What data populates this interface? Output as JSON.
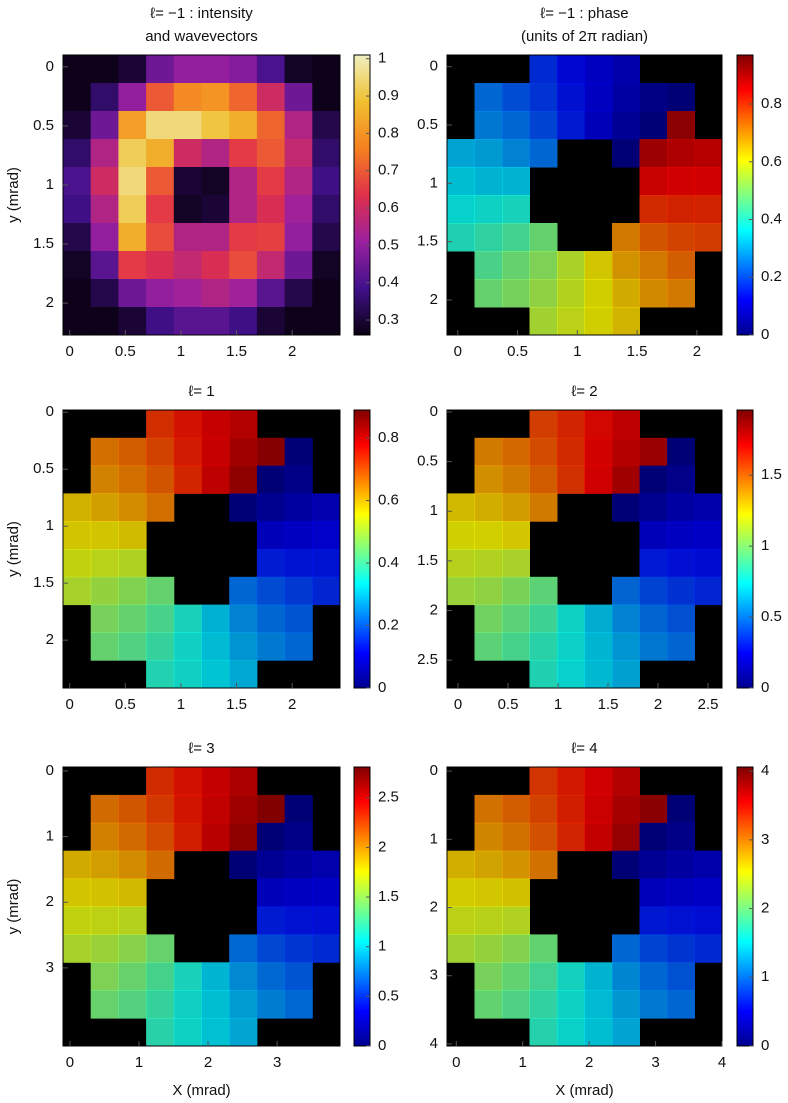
{
  "chart_data": [
    {
      "type": "heatmap",
      "title": [
        "ℓ= −1 : intensity",
        "and wavevectors"
      ],
      "ylabel": "y (mrad)",
      "xlim": [
        -0.06,
        2.43
      ],
      "ylim": [
        -0.1,
        2.27
      ],
      "xticks": [
        0,
        0.5,
        1,
        1.5,
        2
      ],
      "yticks": [
        0,
        0.5,
        1,
        1.5,
        2
      ],
      "clim": [
        0.26,
        1.01
      ],
      "cticks": [
        0.3,
        0.4,
        0.5,
        0.6,
        0.7,
        0.8,
        0.9,
        1
      ],
      "colormap": [
        "#0a0010",
        "#40108a",
        "#9a20a0",
        "#e0304a",
        "#f58020",
        "#f0c030",
        "#f0f0c0"
      ],
      "z": [
        [
          0.27,
          0.27,
          0.3,
          0.45,
          0.5,
          0.5,
          0.48,
          0.4,
          0.28,
          0.27
        ],
        [
          0.27,
          0.35,
          0.5,
          0.7,
          0.78,
          0.8,
          0.72,
          0.6,
          0.45,
          0.27
        ],
        [
          0.3,
          0.45,
          0.82,
          0.95,
          0.95,
          0.9,
          0.85,
          0.72,
          0.55,
          0.32
        ],
        [
          0.35,
          0.55,
          0.92,
          0.85,
          0.6,
          0.55,
          0.65,
          0.7,
          0.58,
          0.35
        ],
        [
          0.4,
          0.6,
          0.95,
          0.7,
          0.3,
          0.28,
          0.55,
          0.65,
          0.55,
          0.38
        ],
        [
          0.38,
          0.55,
          0.92,
          0.65,
          0.28,
          0.3,
          0.55,
          0.62,
          0.52,
          0.35
        ],
        [
          0.32,
          0.5,
          0.85,
          0.68,
          0.55,
          0.55,
          0.65,
          0.66,
          0.5,
          0.32
        ],
        [
          0.28,
          0.42,
          0.65,
          0.62,
          0.58,
          0.62,
          0.68,
          0.58,
          0.45,
          0.28
        ],
        [
          0.27,
          0.32,
          0.45,
          0.5,
          0.52,
          0.55,
          0.52,
          0.42,
          0.32,
          0.27
        ],
        [
          0.27,
          0.27,
          0.3,
          0.38,
          0.42,
          0.42,
          0.38,
          0.3,
          0.27,
          0.27
        ]
      ]
    },
    {
      "type": "heatmap",
      "title": [
        "ℓ= −1 : phase",
        "(units of 2π radian)"
      ],
      "xlim": [
        -0.09,
        2.21
      ],
      "ylim": [
        -0.1,
        2.3
      ],
      "xticks": [
        0,
        0.5,
        1,
        1.5,
        2
      ],
      "yticks": [
        0,
        0.5,
        1,
        1.5,
        2
      ],
      "clim": [
        0,
        0.97
      ],
      "cticks": [
        0,
        0.2,
        0.4,
        0.6,
        0.8
      ],
      "colormap": [
        "#00008f",
        "#0000ff",
        "#0080ff",
        "#00ffff",
        "#80ff80",
        "#ffff00",
        "#ff8000",
        "#ff0000",
        "#800000"
      ],
      "z": [
        [
          null,
          null,
          null,
          0.17,
          0.13,
          0.1,
          0.07,
          null,
          null,
          null
        ],
        [
          null,
          0.24,
          0.21,
          0.18,
          0.14,
          0.1,
          0.06,
          0.02,
          0,
          null
        ],
        [
          null,
          0.26,
          0.24,
          0.2,
          0.15,
          0.09,
          0.04,
          0,
          0.93,
          null
        ],
        [
          0.31,
          0.3,
          0.27,
          0.24,
          null,
          null,
          0,
          0.91,
          0.89,
          0.88
        ],
        [
          0.34,
          0.33,
          0.33,
          null,
          null,
          null,
          null,
          0.86,
          0.85,
          0.85
        ],
        [
          0.37,
          0.38,
          0.39,
          null,
          null,
          null,
          null,
          0.8,
          0.81,
          0.81
        ],
        [
          0.4,
          0.42,
          0.44,
          0.48,
          null,
          null,
          0.71,
          0.75,
          0.77,
          0.78
        ],
        [
          null,
          0.45,
          0.48,
          0.51,
          0.56,
          0.62,
          0.68,
          0.71,
          0.74,
          null
        ],
        [
          null,
          0.48,
          0.5,
          0.53,
          0.57,
          0.61,
          0.65,
          0.69,
          0.71,
          null
        ],
        [
          null,
          null,
          null,
          0.55,
          0.58,
          0.61,
          0.64,
          null,
          null,
          null
        ]
      ]
    },
    {
      "type": "heatmap",
      "title": [
        "ℓ= 1"
      ],
      "ylabel": "y (mrad)",
      "xlim": [
        -0.06,
        2.43
      ],
      "ylim": [
        -0.02,
        2.42
      ],
      "xticks": [
        0,
        0.5,
        1,
        1.5,
        2
      ],
      "yticks": [
        0,
        0.5,
        1,
        1.5,
        2
      ],
      "clim": [
        0,
        0.89
      ],
      "cticks": [
        0,
        0.2,
        0.4,
        0.6,
        0.8
      ],
      "colormap": [
        "#00008f",
        "#0000ff",
        "#0080ff",
        "#00ffff",
        "#80ff80",
        "#ffff00",
        "#ff8000",
        "#ff0000",
        "#800000"
      ],
      "z": [
        [
          null,
          null,
          null,
          0.73,
          0.76,
          0.79,
          0.81,
          null,
          null,
          null
        ],
        [
          null,
          0.66,
          0.68,
          0.71,
          0.75,
          0.79,
          0.83,
          0.86,
          0,
          null
        ],
        [
          null,
          0.64,
          0.66,
          0.69,
          0.74,
          0.8,
          0.85,
          0,
          0.02,
          null
        ],
        [
          0.59,
          0.61,
          0.63,
          0.66,
          null,
          null,
          0,
          0.03,
          0.05,
          0.07
        ],
        [
          0.57,
          0.57,
          0.58,
          null,
          null,
          null,
          null,
          0.08,
          0.09,
          0.1
        ],
        [
          0.54,
          0.53,
          0.52,
          null,
          null,
          null,
          null,
          0.14,
          0.13,
          0.13
        ],
        [
          0.51,
          0.49,
          0.47,
          0.44,
          null,
          null,
          0.22,
          0.19,
          0.17,
          0.15
        ],
        [
          null,
          0.46,
          0.44,
          0.41,
          0.36,
          0.3,
          0.25,
          0.22,
          0.2,
          null
        ],
        [
          null,
          0.44,
          0.42,
          0.39,
          0.35,
          0.31,
          0.27,
          0.24,
          0.22,
          null
        ],
        [
          null,
          null,
          null,
          0.37,
          0.35,
          0.32,
          0.29,
          null,
          null,
          null
        ]
      ]
    },
    {
      "type": "heatmap",
      "title": [
        "ℓ= 2"
      ],
      "xlim": [
        -0.11,
        2.64
      ],
      "ylim": [
        -0.02,
        2.78
      ],
      "xticks": [
        0,
        0.5,
        1,
        1.5,
        2,
        2.5
      ],
      "yticks": [
        0,
        0.5,
        1,
        1.5,
        2,
        2.5
      ],
      "clim": [
        0,
        1.96
      ],
      "cticks": [
        0,
        0.5,
        1,
        1.5
      ],
      "colormap": [
        "#00008f",
        "#0000ff",
        "#0080ff",
        "#00ffff",
        "#80ff80",
        "#ffff00",
        "#ff8000",
        "#ff0000",
        "#800000"
      ],
      "z": [
        [
          null,
          null,
          null,
          1.57,
          1.63,
          1.7,
          1.76,
          null,
          null,
          null
        ],
        [
          null,
          1.43,
          1.47,
          1.54,
          1.62,
          1.71,
          1.78,
          1.85,
          0,
          null
        ],
        [
          null,
          1.38,
          1.43,
          1.5,
          1.6,
          1.72,
          1.83,
          0,
          0.05,
          null
        ],
        [
          1.28,
          1.31,
          1.35,
          1.43,
          null,
          null,
          0,
          0.07,
          0.12,
          0.14
        ],
        [
          1.22,
          1.23,
          1.25,
          null,
          null,
          null,
          null,
          0.18,
          0.2,
          0.21
        ],
        [
          1.16,
          1.15,
          1.13,
          null,
          null,
          null,
          null,
          0.3,
          0.28,
          0.27
        ],
        [
          1.09,
          1.07,
          1.02,
          0.95,
          null,
          null,
          0.48,
          0.4,
          0.36,
          0.33
        ],
        [
          null,
          1.0,
          0.95,
          0.88,
          0.77,
          0.65,
          0.55,
          0.48,
          0.43,
          null
        ],
        [
          null,
          0.95,
          0.9,
          0.83,
          0.76,
          0.67,
          0.59,
          0.52,
          0.48,
          null
        ],
        [
          null,
          null,
          null,
          0.81,
          0.75,
          0.68,
          0.62,
          null,
          null,
          null
        ]
      ]
    },
    {
      "type": "heatmap",
      "title": [
        "ℓ= 3"
      ],
      "ylabel": "y (mrad)",
      "xlabel": "X (mrad)",
      "xlim": [
        -0.1,
        3.91
      ],
      "ylim": [
        -0.06,
        4.19
      ],
      "xticks": [
        0,
        1,
        2,
        3
      ],
      "yticks": [
        0,
        1,
        2,
        3
      ],
      "clim": [
        0,
        2.81
      ],
      "cticks": [
        0,
        0.5,
        1,
        1.5,
        2,
        2.5
      ],
      "colormap": [
        "#00008f",
        "#0000ff",
        "#0080ff",
        "#00ffff",
        "#80ff80",
        "#ffff00",
        "#ff8000",
        "#ff0000",
        "#800000"
      ],
      "z": [
        [
          null,
          null,
          null,
          2.31,
          2.4,
          2.5,
          2.59,
          null,
          null,
          null
        ],
        [
          null,
          2.1,
          2.17,
          2.27,
          2.39,
          2.51,
          2.63,
          2.73,
          0,
          null
        ],
        [
          null,
          2.03,
          2.1,
          2.21,
          2.36,
          2.54,
          2.69,
          0,
          0.07,
          null
        ],
        [
          1.89,
          1.93,
          1.99,
          2.1,
          null,
          null,
          0,
          0.11,
          0.17,
          0.21
        ],
        [
          1.8,
          1.81,
          1.84,
          null,
          null,
          null,
          null,
          0.26,
          0.29,
          0.3
        ],
        [
          1.7,
          1.69,
          1.66,
          null,
          null,
          null,
          null,
          0.44,
          0.41,
          0.4
        ],
        [
          1.61,
          1.57,
          1.51,
          1.4,
          null,
          null,
          0.7,
          0.59,
          0.53,
          0.49
        ],
        [
          null,
          1.47,
          1.4,
          1.29,
          1.14,
          0.96,
          0.81,
          0.7,
          0.63,
          null
        ],
        [
          null,
          1.4,
          1.33,
          1.23,
          1.11,
          0.99,
          0.87,
          0.77,
          0.7,
          null
        ],
        [
          null,
          null,
          null,
          1.19,
          1.1,
          1.0,
          0.91,
          null,
          null,
          null
        ]
      ]
    },
    {
      "type": "heatmap",
      "title": [
        "ℓ= 4"
      ],
      "xlabel": "X (mrad)",
      "xlim": [
        -0.14,
        4.0
      ],
      "ylim": [
        -0.06,
        4.03
      ],
      "xticks": [
        0,
        1,
        2,
        3,
        4
      ],
      "yticks": [
        0,
        1,
        2,
        3,
        4
      ],
      "clim": [
        0,
        4.06
      ],
      "cticks": [
        0,
        1,
        2,
        3,
        4
      ],
      "colormap": [
        "#00008f",
        "#0000ff",
        "#0080ff",
        "#00ffff",
        "#80ff80",
        "#ffff00",
        "#ff8000",
        "#ff0000",
        "#800000"
      ],
      "z": [
        [
          null,
          null,
          null,
          3.3,
          3.43,
          3.57,
          3.7,
          null,
          null,
          null
        ],
        [
          null,
          3.0,
          3.1,
          3.24,
          3.41,
          3.59,
          3.76,
          3.9,
          0,
          null
        ],
        [
          null,
          2.9,
          3.0,
          3.16,
          3.38,
          3.62,
          3.84,
          0,
          0.1,
          null
        ],
        [
          2.7,
          2.76,
          2.84,
          3.0,
          null,
          null,
          0,
          0.16,
          0.24,
          0.3
        ],
        [
          2.57,
          2.59,
          2.62,
          null,
          null,
          null,
          null,
          0.38,
          0.41,
          0.43
        ],
        [
          2.43,
          2.41,
          2.38,
          null,
          null,
          null,
          null,
          0.62,
          0.59,
          0.57
        ],
        [
          2.3,
          2.24,
          2.16,
          2.0,
          null,
          null,
          1.0,
          0.84,
          0.76,
          0.7
        ],
        [
          null,
          2.1,
          2.0,
          1.84,
          1.62,
          1.38,
          1.16,
          1.0,
          0.9,
          null
        ],
        [
          null,
          2.0,
          1.9,
          1.76,
          1.59,
          1.41,
          1.24,
          1.1,
          1.0,
          null
        ],
        [
          null,
          null,
          null,
          1.7,
          1.57,
          1.43,
          1.3,
          null,
          null,
          null
        ]
      ]
    }
  ]
}
